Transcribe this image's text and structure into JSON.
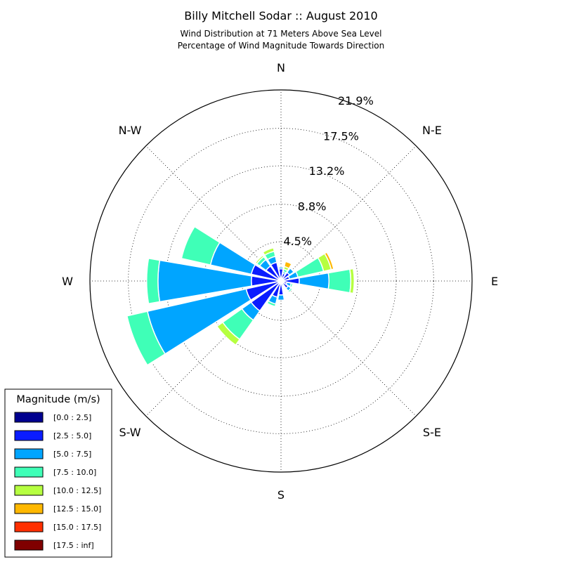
{
  "chart_data": {
    "type": "windrose",
    "title": "Billy Mitchell Sodar :: August 2010",
    "subtitle": [
      "Wind Distribution at 71 Meters Above Sea Level",
      "Percentage of Wind Magnitude Towards Direction"
    ],
    "direction_labels": [
      "N",
      "N-E",
      "E",
      "S-E",
      "S",
      "S-W",
      "W",
      "N-W"
    ],
    "radial_tick_labels": [
      "4.5%",
      "8.8%",
      "13.2%",
      "17.5%",
      "21.9%"
    ],
    "radial_ticks": [
      4.5,
      8.8,
      13.2,
      17.5
    ],
    "rmax": 21.9,
    "legend_title": "Magnitude (m/s)",
    "legend_labels": [
      "[0.0 : 2.5]",
      "[2.5 : 5.0]",
      "[5.0 : 7.5]",
      "[7.5 : 10.0]",
      "[10.0 : 12.5]",
      "[12.5 : 15.0]",
      "[15.0 : 17.5]",
      "[17.5 : inf]"
    ],
    "colors": [
      "#00008f",
      "#0a1cff",
      "#00a5ff",
      "#3fffb7",
      "#b6ff40",
      "#ffb800",
      "#ff2f00",
      "#800000"
    ],
    "directions_deg": [
      0,
      22.5,
      45,
      67.5,
      90,
      112.5,
      135,
      157.5,
      180,
      202.5,
      225,
      247.5,
      270,
      292.5,
      315,
      337.5
    ],
    "bins": [
      [
        0.1,
        1.3,
        0.2,
        0,
        0,
        0,
        0,
        0
      ],
      [
        0.1,
        0.8,
        0.2,
        0.3,
        0.3,
        0.6,
        0.1,
        0
      ],
      [
        0.2,
        1.0,
        0.6,
        0.1,
        0,
        0,
        0,
        0
      ],
      [
        0.2,
        0.8,
        1.0,
        3.0,
        0.9,
        0.3,
        0.1,
        0
      ],
      [
        0.2,
        1.9,
        3.4,
        2.5,
        0.4,
        0,
        0,
        0
      ],
      [
        0.1,
        0.6,
        0.5,
        0.2,
        0,
        0,
        0,
        0
      ],
      [
        0.2,
        0.8,
        0.4,
        0.2,
        0,
        0,
        0,
        0
      ],
      [
        0.1,
        0.3,
        0.2,
        0,
        0,
        0,
        0,
        0
      ],
      [
        0.1,
        1.5,
        0.6,
        0,
        0,
        0,
        0,
        0
      ],
      [
        0.1,
        1.8,
        0.8,
        0.3,
        0,
        0,
        0,
        0
      ],
      [
        0.2,
        4.0,
        1.3,
        2.7,
        0.8,
        0,
        0,
        0
      ],
      [
        0.2,
        3.9,
        11.6,
        2.4,
        0,
        0,
        0,
        0
      ],
      [
        0.2,
        3.2,
        10.7,
        1.3,
        0,
        0,
        0,
        0
      ],
      [
        0.2,
        3.3,
        4.8,
        3.4,
        0,
        0,
        0,
        0
      ],
      [
        0.1,
        2.0,
        0.9,
        0.4,
        0.2,
        0,
        0,
        0
      ],
      [
        0.1,
        2.1,
        0.7,
        0.6,
        0.4,
        0,
        0,
        0
      ]
    ]
  }
}
